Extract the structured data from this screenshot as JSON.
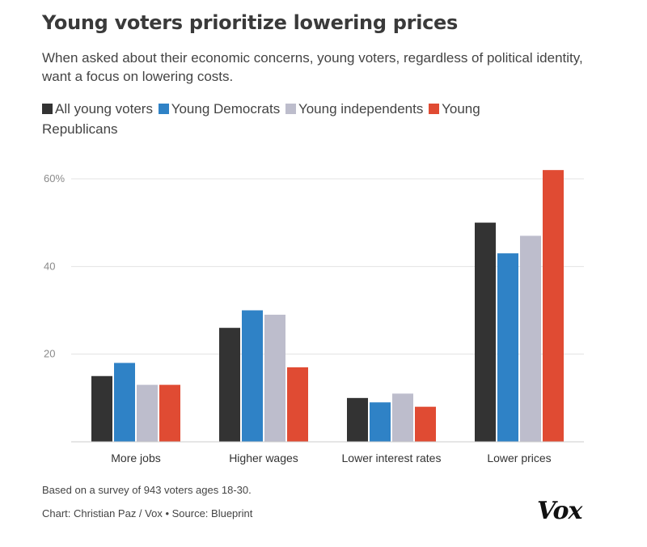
{
  "header": {
    "title": "Young voters prioritize lowering prices",
    "subtitle": "When asked about their economic concerns, young voters, regardless of political identity, want a focus on lowering costs."
  },
  "footer": {
    "note": "Based on a survey of 943 voters ages 18-30.",
    "credit": "Chart: Christian Paz / Vox • Source: Blueprint",
    "logo": "Vox"
  },
  "chart_data": {
    "type": "bar",
    "title": "Young voters prioritize lowering prices",
    "categories": [
      "More jobs",
      "Higher wages",
      "Lower interest rates",
      "Lower prices"
    ],
    "series": [
      {
        "name": "All young voters",
        "color": "#333333",
        "values": [
          15,
          26,
          10,
          50
        ]
      },
      {
        "name": "Young Democrats",
        "color": "#2f82c6",
        "values": [
          18,
          30,
          9,
          43
        ]
      },
      {
        "name": "Young independents",
        "color": "#bdbdcc",
        "values": [
          13,
          29,
          11,
          47
        ]
      },
      {
        "name": "Young Republicans",
        "color": "#e04b33",
        "values": [
          13,
          17,
          8,
          62
        ]
      }
    ],
    "yticks": [
      {
        "value": 20,
        "label": "20"
      },
      {
        "value": 40,
        "label": "40"
      },
      {
        "value": 60,
        "label": "60%"
      }
    ],
    "ylim": [
      0,
      60
    ],
    "grid": true,
    "legend_position": "top"
  }
}
